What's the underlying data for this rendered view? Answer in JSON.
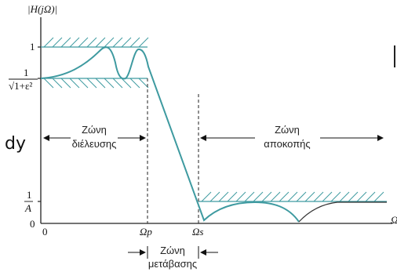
{
  "axes": {
    "y_label": "|H(jΩ)|",
    "x_label": "Ω",
    "origin_x": "0",
    "origin_y": "0",
    "y_tick_one": "1",
    "y_tick_ripple_num": "1",
    "y_tick_ripple_den": "√1+ε²",
    "y_tick_stop_num": "1",
    "y_tick_stop_den": "A",
    "x_tick_pass": "Ωp",
    "x_tick_stop": "Ωs"
  },
  "zones": {
    "pass_line1": "Ζώνη",
    "pass_line2": "διέλευσης",
    "stop_line1": "Ζώνη",
    "stop_line2": "αποκοπής",
    "trans_line1": "Ζώνη",
    "trans_line2": "μετάβασης"
  },
  "annotation": {
    "handwritten": "dy"
  },
  "colors": {
    "curve": "#3e9aa0",
    "axis": "#222222"
  }
}
